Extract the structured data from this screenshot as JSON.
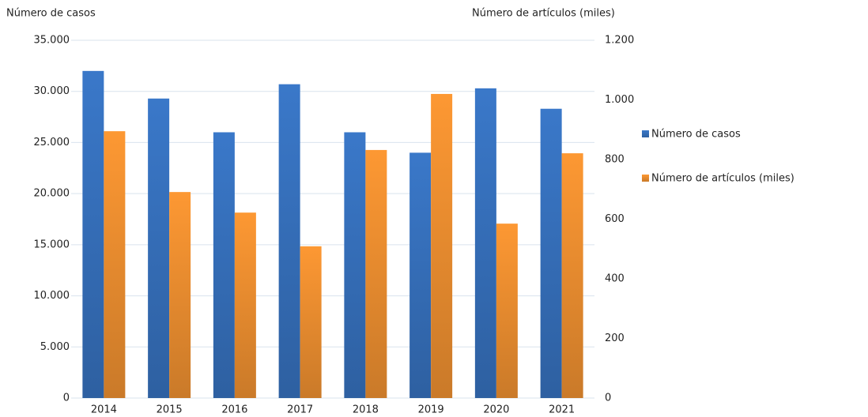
{
  "chart_data": {
    "type": "bar",
    "y_label": "Número de casos",
    "y2_label": "Número de artículos (miles)",
    "categories": [
      "2014",
      "2015",
      "2016",
      "2017",
      "2018",
      "2019",
      "2020",
      "2021"
    ],
    "series": [
      {
        "name": "Número de casos",
        "color": "#3a78c9",
        "values": [
          32000,
          29300,
          26000,
          30700,
          26000,
          24000,
          30300,
          28300
        ]
      },
      {
        "name": "Número de artículos (miles)",
        "color": "#fd9833",
        "axis": "y2",
        "values": [
          895,
          691,
          622,
          509,
          832,
          1020,
          585,
          821
        ]
      }
    ],
    "ylim": [
      0,
      35000
    ],
    "yticks": [
      0,
      {
        "value": 5000,
        "label": "5.000"
      },
      {
        "value": 10000,
        "label": "10.000"
      },
      {
        "value": 15000,
        "label": "15.000"
      },
      {
        "value": 20000,
        "label": "20.000"
      },
      {
        "value": 25000,
        "label": "25.000"
      },
      {
        "value": 30000,
        "label": "30.000"
      },
      {
        "value": 35000,
        "label": "35.000"
      }
    ],
    "y2lim": [
      0,
      1200
    ],
    "y2ticks": [
      0,
      200,
      400,
      600,
      800,
      {
        "value": 1000,
        "label": "1.000"
      },
      {
        "value": 1200,
        "label": "1.200"
      }
    ],
    "grid": true,
    "legend": "right"
  }
}
